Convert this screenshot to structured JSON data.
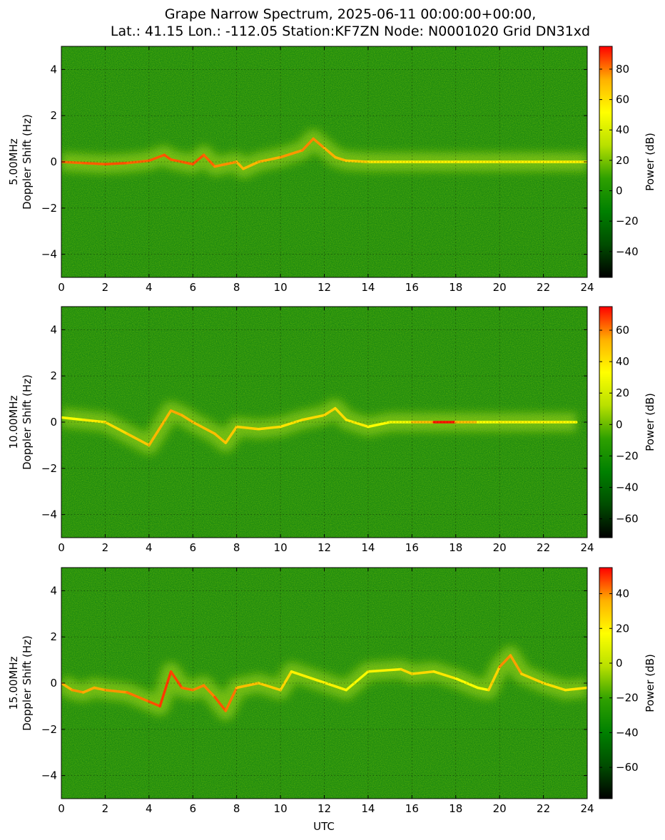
{
  "figure": {
    "title_line1": "Grape Narrow Spectrum, 2025-06-11 00:00:00+00:00,",
    "title_line2": "Lat.: 41.15 Lon.: -112.05 Station:KF7ZN Node: N0001020 Grid DN31xd",
    "xlabel": "UTC",
    "colorbar_label": "Power (dB)"
  },
  "colors": {
    "background_green": "#1f8a10",
    "colormap": [
      "#000000",
      "#004d00",
      "#008000",
      "#2ea000",
      "#b8e000",
      "#ffff00",
      "#ffb000",
      "#ff0000"
    ]
  },
  "chart_data": [
    {
      "type": "heatmap",
      "band": "5.00MHz",
      "ylabel": "5.00MHz\nDoppler Shift (Hz)",
      "ylabel_line1": "5.00MHz",
      "ylabel_line2": "Doppler Shift (Hz)",
      "xlim": [
        0,
        24
      ],
      "ylim": [
        -5,
        5
      ],
      "xticks": [
        "0",
        "2",
        "4",
        "6",
        "8",
        "10",
        "12",
        "14",
        "16",
        "18",
        "20",
        "22",
        "24"
      ],
      "yticks": [
        "4",
        "2",
        "0",
        "−2",
        "−4"
      ],
      "colorbar_range": [
        -57,
        95
      ],
      "colorbar_ticks": [
        "80",
        "60",
        "40",
        "20",
        "0",
        "−20",
        "−40"
      ],
      "trace_utc": [
        0,
        1,
        2,
        3,
        4,
        4.7,
        5,
        6,
        6.5,
        7,
        8,
        8.3,
        9,
        10,
        11,
        11.5,
        12,
        12.5,
        13,
        14,
        15,
        16,
        17,
        18,
        19,
        20,
        21,
        22,
        23,
        24
      ],
      "trace_hz": [
        0.0,
        -0.05,
        -0.1,
        -0.05,
        0.05,
        0.3,
        0.1,
        -0.1,
        0.3,
        -0.2,
        0.0,
        -0.3,
        0.0,
        0.2,
        0.5,
        1.0,
        0.6,
        0.2,
        0.05,
        0.0,
        0.0,
        0.0,
        0.0,
        0.0,
        0.0,
        0.0,
        0.0,
        0.0,
        0.0,
        0.0
      ],
      "trace_db": [
        82,
        82,
        85,
        85,
        80,
        88,
        82,
        85,
        85,
        80,
        75,
        70,
        72,
        75,
        78,
        80,
        75,
        72,
        70,
        60,
        55,
        55,
        55,
        55,
        55,
        55,
        55,
        55,
        55,
        55
      ]
    },
    {
      "type": "heatmap",
      "band": "10.00MHz",
      "ylabel": "10.00MHz\nDoppler Shift (Hz)",
      "ylabel_line1": "10.00MHz",
      "ylabel_line2": "Doppler Shift (Hz)",
      "xlim": [
        0,
        24
      ],
      "ylim": [
        -5,
        5
      ],
      "xticks": [
        "0",
        "2",
        "4",
        "6",
        "8",
        "10",
        "12",
        "14",
        "16",
        "18",
        "20",
        "22",
        "24"
      ],
      "yticks": [
        "4",
        "2",
        "0",
        "−2",
        "−4"
      ],
      "colorbar_range": [
        -72,
        75
      ],
      "colorbar_ticks": [
        "60",
        "40",
        "20",
        "0",
        "−20",
        "−40",
        "−60"
      ],
      "trace_utc": [
        0,
        1,
        2,
        3,
        4,
        5,
        5.5,
        6,
        7,
        7.5,
        8,
        9,
        10,
        11,
        12,
        12.5,
        13,
        14,
        15,
        16,
        17,
        17.5,
        18,
        19,
        20,
        21,
        22,
        23,
        23.5
      ],
      "trace_hz": [
        0.2,
        0.1,
        0.0,
        -0.5,
        -1.0,
        0.5,
        0.3,
        0.0,
        -0.5,
        -0.9,
        -0.2,
        -0.3,
        -0.2,
        0.1,
        0.3,
        0.6,
        0.1,
        -0.2,
        0.0,
        0.0,
        0.0,
        0.0,
        0.0,
        0.0,
        0.0,
        0.0,
        0.0,
        0.0,
        0.0
      ],
      "trace_db": [
        30,
        35,
        40,
        45,
        50,
        55,
        55,
        50,
        50,
        50,
        45,
        45,
        40,
        40,
        45,
        45,
        40,
        35,
        30,
        30,
        70,
        75,
        70,
        30,
        35,
        35,
        35,
        35,
        30
      ]
    },
    {
      "type": "heatmap",
      "band": "15.00MHz",
      "ylabel": "15.00MHz\nDoppler Shift (Hz)",
      "ylabel_line1": "15.00MHz",
      "ylabel_line2": "Doppler Shift (Hz)",
      "xlim": [
        0,
        24
      ],
      "ylim": [
        -5,
        5
      ],
      "xticks": [
        "0",
        "2",
        "4",
        "6",
        "8",
        "10",
        "12",
        "14",
        "16",
        "18",
        "20",
        "22",
        "24"
      ],
      "yticks": [
        "4",
        "2",
        "0",
        "−2",
        "−4"
      ],
      "colorbar_range": [
        -78,
        55
      ],
      "colorbar_ticks": [
        "40",
        "20",
        "0",
        "−20",
        "−40",
        "−60"
      ],
      "trace_utc": [
        0,
        0.5,
        1,
        1.5,
        2,
        3,
        4,
        4.5,
        5,
        5.5,
        6,
        6.5,
        7,
        7.5,
        8,
        9,
        10,
        10.5,
        13,
        14,
        15.5,
        16,
        17,
        18,
        19,
        19.5,
        20,
        20.5,
        21,
        22,
        23,
        24
      ],
      "trace_hz": [
        0.0,
        -0.3,
        -0.4,
        -0.2,
        -0.3,
        -0.4,
        -0.8,
        -1.0,
        0.5,
        -0.2,
        -0.3,
        -0.1,
        -0.6,
        -1.2,
        -0.2,
        0.0,
        -0.3,
        0.5,
        -0.3,
        0.5,
        0.6,
        0.4,
        0.5,
        0.2,
        -0.2,
        -0.3,
        0.7,
        1.2,
        0.4,
        0.0,
        -0.3,
        -0.2
      ],
      "trace_db": [
        30,
        40,
        38,
        35,
        38,
        40,
        45,
        48,
        50,
        45,
        42,
        40,
        42,
        50,
        35,
        30,
        28,
        25,
        15,
        15,
        25,
        28,
        25,
        20,
        15,
        20,
        35,
        45,
        30,
        25,
        25,
        20
      ]
    }
  ]
}
